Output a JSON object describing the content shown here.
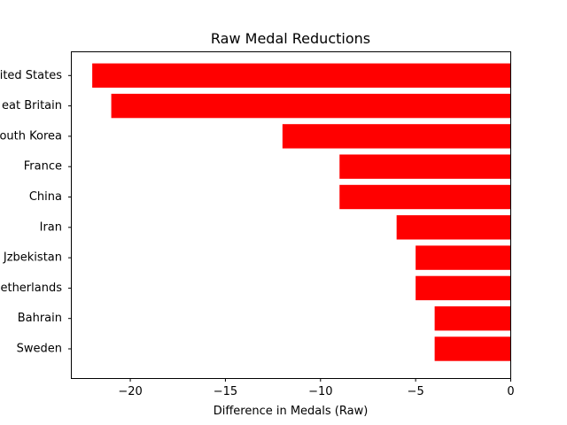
{
  "chart_data": {
    "type": "bar",
    "orientation": "horizontal",
    "title": "Raw Medal Reductions",
    "xlabel": "Difference in Medals (Raw)",
    "ylabel": "",
    "categories": [
      "United States",
      "Great Britain",
      "South Korea",
      "France",
      "China",
      "Iran",
      "Uzbekistan",
      "Netherlands",
      "Bahrain",
      "Sweden"
    ],
    "category_labels_visible": [
      "ited States",
      "eat Britain",
      "outh Korea",
      "France",
      "China",
      "Iran",
      "Jzbekistan",
      "etherlands",
      "Bahrain",
      "Sweden"
    ],
    "values": [
      -22,
      -21,
      -12,
      -9,
      -9,
      -6,
      -5,
      -5,
      -4,
      -4
    ],
    "xlim": [
      -23.1,
      0
    ],
    "xticks": [
      -20,
      -15,
      -10,
      -5,
      0
    ],
    "xtick_labels": [
      "−20",
      "−15",
      "−10",
      "−5",
      "0"
    ],
    "bar_color": "#ff0000",
    "grid": false,
    "legend": "none"
  }
}
